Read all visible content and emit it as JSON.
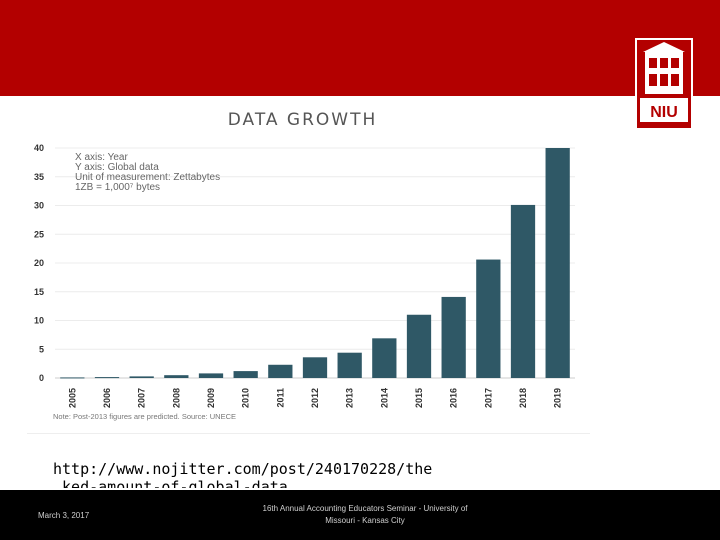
{
  "slide": {
    "url_text": "http://www.nojitter.com/post/240170228/the",
    "url_overflow": "…ked-amount-of-global-data",
    "footer_date": "March 3, 2017",
    "footer_center": "16th Annual Accounting Educators Seminar - University of Missouri - Kansas City",
    "logo_text": "NIU"
  },
  "colors": {
    "band": "#b30000",
    "bar": "#2f5866",
    "footer": "#000000"
  },
  "chart_data": {
    "type": "bar",
    "title": "DATA GROWTH",
    "annotations": [
      "X axis: Year",
      "Y axis: Global data",
      "Unit of measurement: Zettabytes",
      "1ZB = 1,000⁷ bytes"
    ],
    "note": "Note: Post-2013 figures are predicted. Source: UNECE",
    "categories": [
      "2005",
      "2006",
      "2007",
      "2008",
      "2009",
      "2010",
      "2011",
      "2012",
      "2013",
      "2014",
      "2015",
      "2016",
      "2017",
      "2018",
      "2019"
    ],
    "values": [
      0.1,
      0.16,
      0.28,
      0.49,
      0.8,
      1.2,
      2.3,
      3.6,
      4.4,
      6.9,
      11,
      14.1,
      20.6,
      30.1,
      40
    ],
    "ylim": [
      0,
      40
    ],
    "yticks": [
      0,
      5,
      10,
      15,
      20,
      25,
      30,
      35,
      40
    ],
    "grid": true
  }
}
